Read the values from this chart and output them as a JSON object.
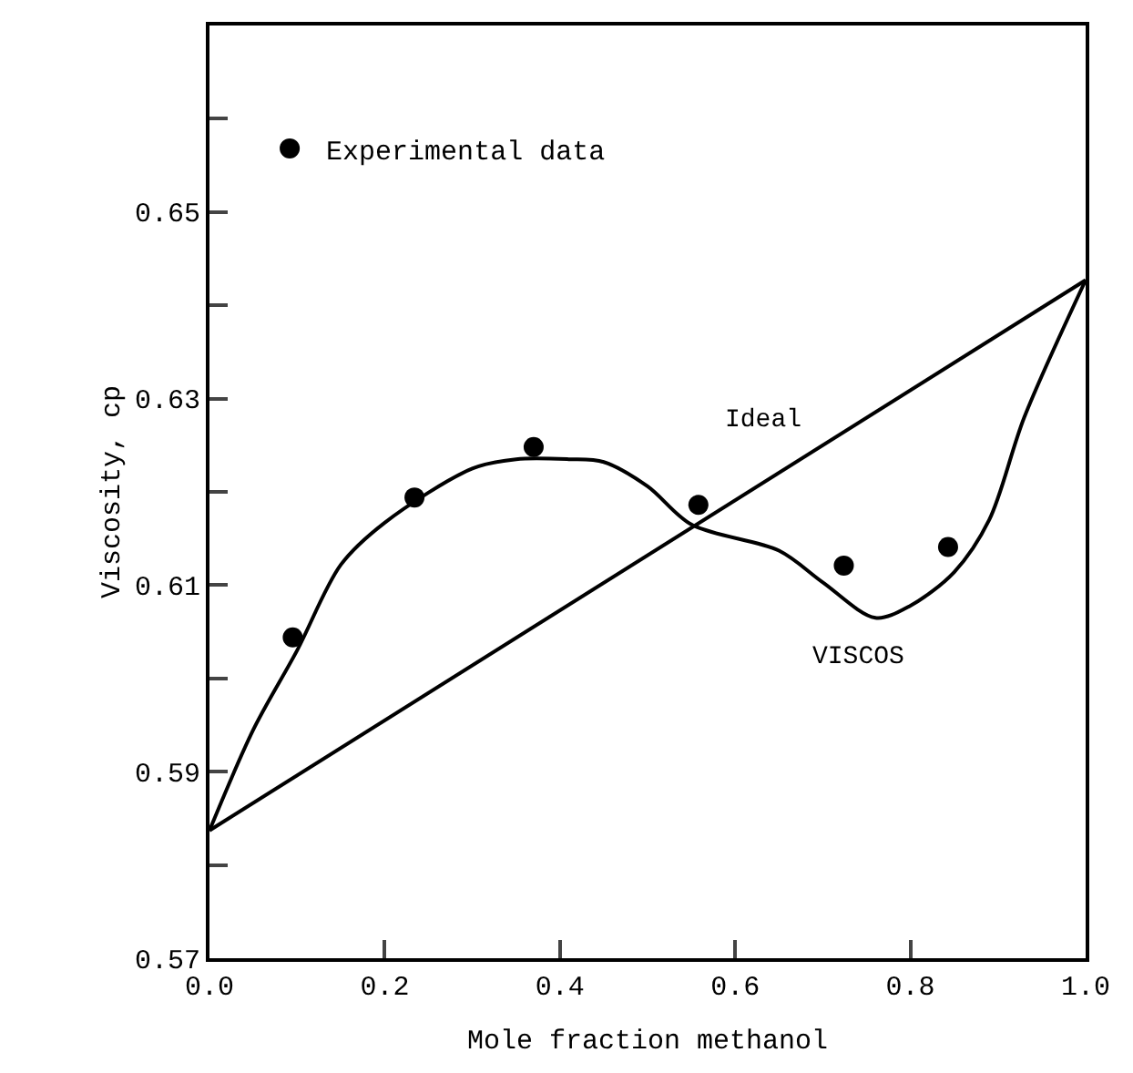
{
  "chart_data": {
    "type": "line",
    "xlabel": "Mole fraction methanol",
    "ylabel": "Viscosity, cp",
    "xlim": [
      0,
      1.0
    ],
    "ylim": [
      0.57,
      0.67
    ],
    "xticks": [
      {
        "value": 0,
        "label": "0.0"
      },
      0.2,
      0.4,
      0.6,
      0.8,
      {
        "value": 1.0,
        "label": "1.0"
      }
    ],
    "yticks": [
      0.57,
      {
        "value": 0.58,
        "label": null
      },
      0.59,
      {
        "value": 0.6,
        "label": null
      },
      0.61,
      {
        "value": 0.62,
        "label": null
      },
      0.63,
      {
        "value": 0.64,
        "label": null
      },
      0.65,
      {
        "value": 0.66,
        "label": null
      }
    ],
    "legend": "top left",
    "series": [
      {
        "name": "Experimental data",
        "type": "scatter",
        "marker": "circle",
        "color": "#000000",
        "x": [
          0.095,
          0.234,
          0.37,
          0.558,
          0.724,
          0.843
        ],
        "values": [
          0.6044,
          0.6194,
          0.6248,
          0.6186,
          0.6121,
          0.6141
        ]
      },
      {
        "name": "Ideal",
        "marker": "none",
        "line_style": "solid",
        "color": "#000000",
        "x": [
          0,
          1.0
        ],
        "values": [
          0.5837,
          0.6427
        ]
      },
      {
        "name": "VISCOS",
        "marker": "none",
        "line_style": "solid",
        "color": "#000000",
        "x": [
          0,
          0.05,
          0.1,
          0.15,
          0.2,
          0.3,
          0.35,
          0.41,
          0.45,
          0.5,
          0.55,
          0.65,
          0.7,
          0.76,
          0.8,
          0.85,
          0.89,
          0.93,
          1.0
        ],
        "values": [
          0.5837,
          0.5945,
          0.603,
          0.6122,
          0.6167,
          0.6225,
          0.6235,
          0.6235,
          0.6232,
          0.6206,
          0.6165,
          0.6137,
          0.6103,
          0.6065,
          0.6078,
          0.6114,
          0.617,
          0.628,
          0.6427
        ]
      }
    ]
  }
}
